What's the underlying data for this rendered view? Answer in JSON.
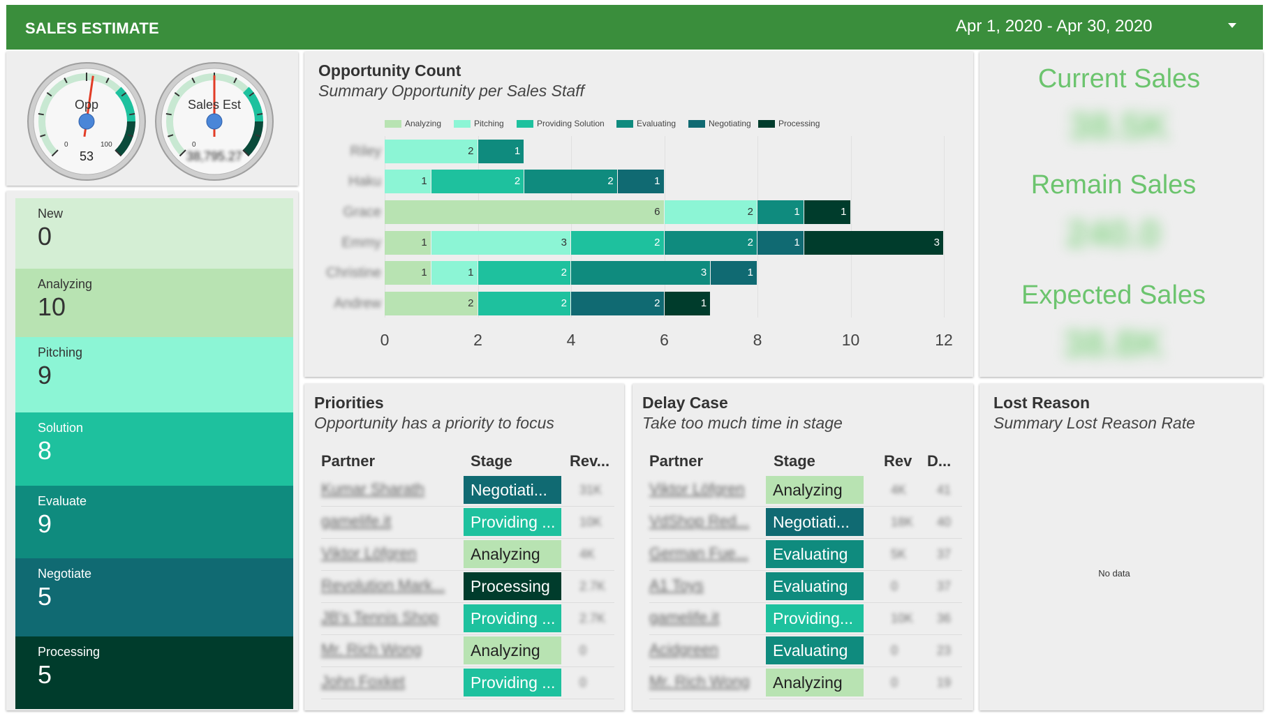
{
  "header": {
    "title": "SALES ESTIMATE",
    "date_range": "Apr 1, 2020 - Apr 30, 2020"
  },
  "gauges": [
    {
      "label": "Opp",
      "value": "53",
      "min": "0",
      "max": "100",
      "value_pct": 0.53
    },
    {
      "label": "Sales Est",
      "value": "38,795.27",
      "min": "0",
      "max": "",
      "value_pct": 0.5
    }
  ],
  "status_tiles": [
    {
      "label": "New",
      "value": "0",
      "bg": "#d4eed4",
      "fg": "#333333"
    },
    {
      "label": "Analyzing",
      "value": "10",
      "bg": "#b8e3b2",
      "fg": "#333333"
    },
    {
      "label": "Pitching",
      "value": "9",
      "bg": "#8cf5d5",
      "fg": "#333333"
    },
    {
      "label": "Solution",
      "value": "8",
      "bg": "#1ec19e",
      "fg": "#ffffff"
    },
    {
      "label": "Evaluate",
      "value": "9",
      "bg": "#0f8b7e",
      "fg": "#ffffff"
    },
    {
      "label": "Negotiate",
      "value": "5",
      "bg": "#106a72",
      "fg": "#ffffff"
    },
    {
      "label": "Processing",
      "value": "5",
      "bg": "#003c2c",
      "fg": "#ffffff"
    }
  ],
  "opportunity": {
    "title": "Opportunity Count",
    "subtitle": "Summary Opportunity per Sales Staff"
  },
  "chart_data": {
    "type": "bar",
    "orientation": "horizontal",
    "stacked": true,
    "categories": [
      "Riley",
      "Haku",
      "Grace",
      "Emmy",
      "Christine",
      "Andrew"
    ],
    "series": [
      {
        "name": "Analyzing",
        "color": "#b8e3b2",
        "values": [
          0,
          0,
          6,
          1,
          1,
          2
        ]
      },
      {
        "name": "Pitching",
        "color": "#8cf5d5",
        "values": [
          2,
          1,
          2,
          3,
          1,
          0
        ]
      },
      {
        "name": "Providing Solution",
        "color": "#1ec19e",
        "values": [
          0,
          2,
          0,
          2,
          2,
          2
        ]
      },
      {
        "name": "Evaluating",
        "color": "#0f8b7e",
        "values": [
          1,
          2,
          1,
          2,
          3,
          0
        ]
      },
      {
        "name": "Negotiating",
        "color": "#106a72",
        "values": [
          0,
          1,
          0,
          1,
          1,
          2
        ]
      },
      {
        "name": "Processing",
        "color": "#003c2c",
        "values": [
          0,
          0,
          1,
          3,
          0,
          1
        ]
      }
    ],
    "xticks": [
      "0",
      "2",
      "4",
      "6",
      "8",
      "10",
      "12"
    ],
    "xlim": [
      0,
      12
    ],
    "legend": "top"
  },
  "sales": {
    "current_label": "Current Sales",
    "current_value": "38.5K",
    "remain_label": "Remain Sales",
    "remain_value": "240.0",
    "expected_label": "Expected Sales",
    "expected_value": "38.8K"
  },
  "priorities": {
    "title": "Priorities",
    "subtitle": "Opportunity has a priority to focus",
    "columns": [
      "Partner",
      "Stage",
      "Rev..."
    ],
    "rows": [
      {
        "partner": "Kumar Sharath",
        "stage": "Negotiati...",
        "stage_bg": "#106a72",
        "stage_fg": "#ffffff",
        "rev": "31K"
      },
      {
        "partner": "gamelife.it",
        "stage": "Providing ...",
        "stage_bg": "#1ec19e",
        "stage_fg": "#ffffff",
        "rev": "10K"
      },
      {
        "partner": "Viktor Löfgren",
        "stage": "Analyzing",
        "stage_bg": "#b8e3b2",
        "stage_fg": "#222222",
        "rev": "4K"
      },
      {
        "partner": "Revolution Mark...",
        "stage": "Processing",
        "stage_bg": "#003c2c",
        "stage_fg": "#ffffff",
        "rev": "2.7K"
      },
      {
        "partner": "JB's Tennis Shop",
        "stage": "Providing ...",
        "stage_bg": "#1ec19e",
        "stage_fg": "#ffffff",
        "rev": "2.7K"
      },
      {
        "partner": "Mr. Rich Wong",
        "stage": "Analyzing",
        "stage_bg": "#b8e3b2",
        "stage_fg": "#222222",
        "rev": "0"
      },
      {
        "partner": "John Foxket",
        "stage": "Providing ...",
        "stage_bg": "#1ec19e",
        "stage_fg": "#ffffff",
        "rev": "0"
      }
    ]
  },
  "delay": {
    "title": "Delay Case",
    "subtitle": "Take too much time in stage",
    "columns": [
      "Partner",
      "Stage",
      "Rev",
      "D..."
    ],
    "rows": [
      {
        "partner": "Viktor Löfgren",
        "stage": "Analyzing",
        "stage_bg": "#b8e3b2",
        "stage_fg": "#222222",
        "rev": "4K",
        "days": "41"
      },
      {
        "partner": "VdShop Red...",
        "stage": "Negotiati...",
        "stage_bg": "#106a72",
        "stage_fg": "#ffffff",
        "rev": "18K",
        "days": "40"
      },
      {
        "partner": "German Fue...",
        "stage": "Evaluating",
        "stage_bg": "#0f8b7e",
        "stage_fg": "#ffffff",
        "rev": "5K",
        "days": "37"
      },
      {
        "partner": "A1 Toys",
        "stage": "Evaluating",
        "stage_bg": "#0f8b7e",
        "stage_fg": "#ffffff",
        "rev": "0",
        "days": "37"
      },
      {
        "partner": "gamelife.it",
        "stage": "Providing...",
        "stage_bg": "#1ec19e",
        "stage_fg": "#ffffff",
        "rev": "10K",
        "days": "36"
      },
      {
        "partner": "Acidgreen",
        "stage": "Evaluating",
        "stage_bg": "#0f8b7e",
        "stage_fg": "#ffffff",
        "rev": "0",
        "days": "23"
      },
      {
        "partner": "Mr. Rich Wong",
        "stage": "Analyzing",
        "stage_bg": "#b8e3b2",
        "stage_fg": "#222222",
        "rev": "0",
        "days": "19"
      }
    ]
  },
  "lost": {
    "title": "Lost Reason",
    "subtitle": "Summary Lost Reason Rate",
    "empty": "No data"
  }
}
